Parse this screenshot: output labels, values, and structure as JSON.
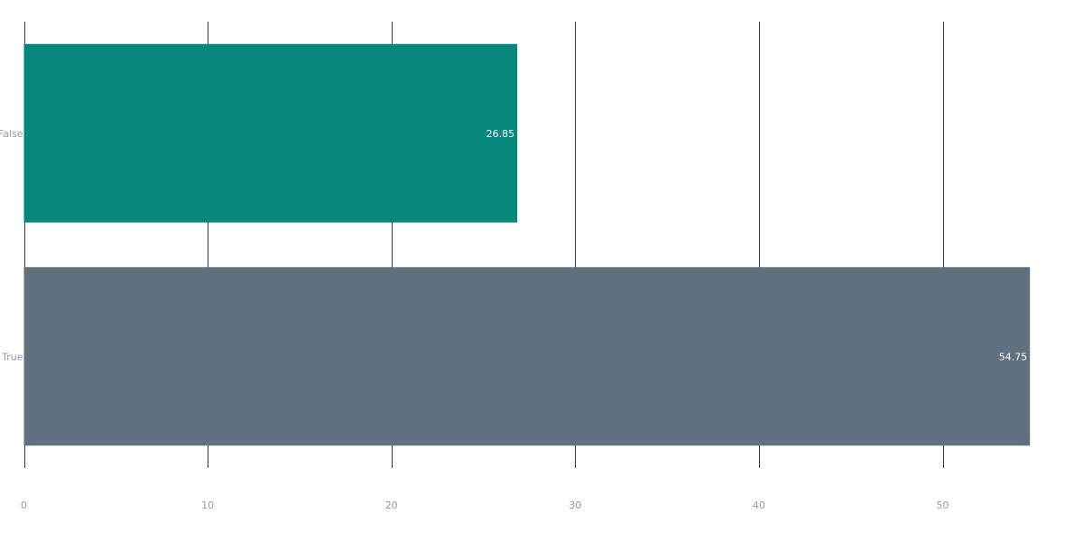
{
  "chart_data": {
    "type": "bar",
    "orientation": "horizontal",
    "categories": [
      "False",
      "True"
    ],
    "values": [
      26.85,
      54.75
    ],
    "value_labels": [
      "26.85",
      "54.75"
    ],
    "bar_colors": [
      "#05877c",
      "#5f717f"
    ],
    "xlim": [
      0,
      55
    ],
    "x_ticks": [
      0,
      10,
      20,
      30,
      40,
      50
    ],
    "title": "",
    "xlabel": "",
    "ylabel": "",
    "grid": "vertical",
    "legend": "none"
  },
  "colors": {
    "tick_label": "#8a9bb0",
    "gridline": "#3a3a3a",
    "value_label": "#ffffff",
    "background": "#ffffff"
  }
}
